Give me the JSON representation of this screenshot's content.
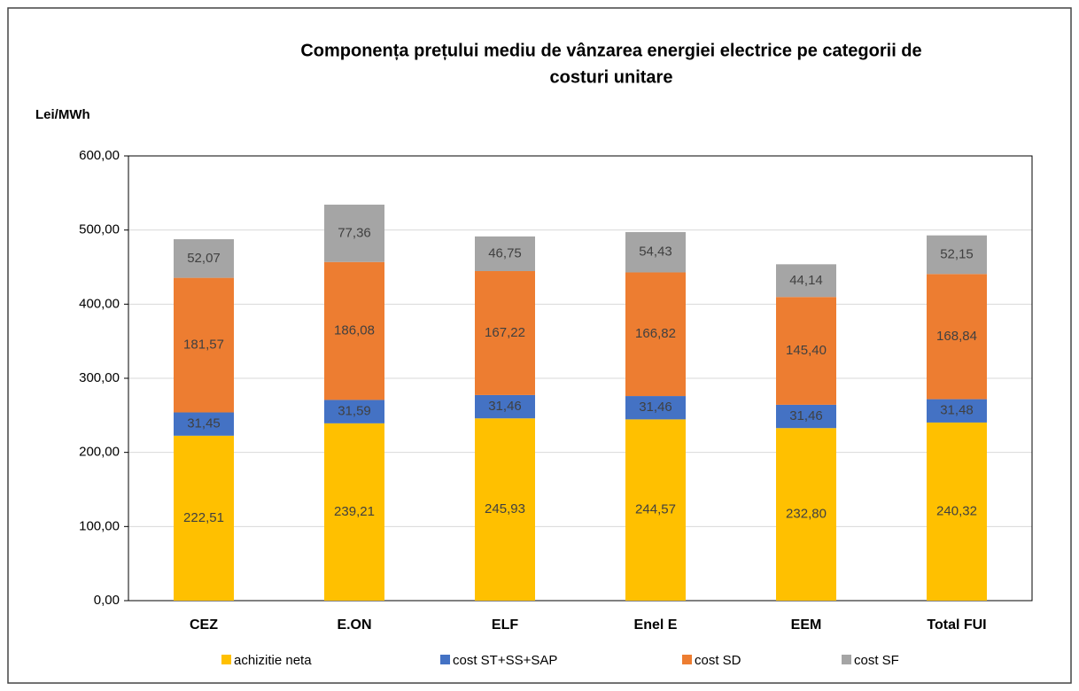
{
  "chart_data": {
    "type": "stacked_bar",
    "title": [
      "Componența prețului mediu de vânzarea energiei electrice pe categorii de",
      "costuri unitare"
    ],
    "y_label": "Lei/MWh",
    "categories": [
      "CEZ",
      "E.ON",
      "ELF",
      "Enel E",
      "EEM",
      "Total FUI"
    ],
    "series": [
      {
        "name": "achizitie neta",
        "color": "#ffc000",
        "values": [
          222.51,
          239.21,
          245.93,
          244.57,
          232.8,
          240.32
        ],
        "value_labels": [
          "222,51",
          "239,21",
          "245,93",
          "244,57",
          "232,80",
          "240,32"
        ]
      },
      {
        "name": "cost ST+SS+SAP",
        "color": "#4472c4",
        "values": [
          31.45,
          31.59,
          31.46,
          31.46,
          31.46,
          31.48
        ],
        "value_labels": [
          "31,45",
          "31,59",
          "31,46",
          "31,46",
          "31,46",
          "31,48"
        ]
      },
      {
        "name": "cost SD",
        "color": "#ed7d31",
        "values": [
          181.57,
          186.08,
          167.22,
          166.82,
          145.4,
          168.84
        ],
        "value_labels": [
          "181,57",
          "186,08",
          "167,22",
          "166,82",
          "145,40",
          "168,84"
        ]
      },
      {
        "name": "cost SF",
        "color": "#a5a5a5",
        "values": [
          52.07,
          77.36,
          46.75,
          54.43,
          44.14,
          52.15
        ],
        "value_labels": [
          "52,07",
          "77,36",
          "46,75",
          "54,43",
          "44,14",
          "52,15"
        ]
      }
    ],
    "ylim": [
      0,
      600
    ],
    "yticks": [
      {
        "value": 0,
        "label": "0,00"
      },
      {
        "value": 100,
        "label": "100,00"
      },
      {
        "value": 200,
        "label": "200,00"
      },
      {
        "value": 300,
        "label": "300,00"
      },
      {
        "value": 400,
        "label": "400,00"
      },
      {
        "value": 500,
        "label": "500,00"
      },
      {
        "value": 600,
        "label": "600,00"
      }
    ],
    "grid": true,
    "legend": "bottom"
  }
}
